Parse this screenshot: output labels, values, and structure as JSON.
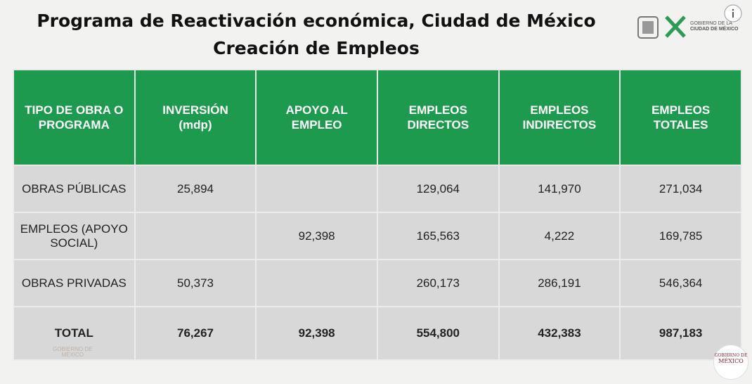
{
  "header": {
    "title": "Programa de Reactivación económica, Ciudad de México",
    "subtitle": "Creación de Empleos"
  },
  "logos": {
    "cdmx": [
      "GOBIERNO DE LA",
      "CIUDAD DE MÉXICO"
    ],
    "federal": [
      "GOBIERNO DE",
      "MÉXICO"
    ],
    "watermark": [
      "GOBIERNO DE",
      "MÉXICO"
    ]
  },
  "table": {
    "columns": [
      [
        "TIPO DE OBRA O",
        "PROGRAMA"
      ],
      [
        "INVERSIÓN",
        "(mdp)"
      ],
      [
        "APOYO AL",
        "EMPLEO"
      ],
      [
        "EMPLEOS",
        "DIRECTOS"
      ],
      [
        "EMPLEOS",
        "INDIRECTOS"
      ],
      [
        "EMPLEOS",
        "TOTALES"
      ]
    ],
    "rows": [
      [
        "OBRAS PÚBLICAS",
        "25,894",
        null,
        "129,064",
        "141,970",
        "271,034"
      ],
      [
        "EMPLEOS (APOYO SOCIAL)",
        null,
        "92,398",
        "165,563",
        "4,222",
        "169,785"
      ],
      [
        "OBRAS PRIVADAS",
        "50,373",
        null,
        "260,173",
        "286,191",
        "546,364"
      ],
      [
        "TOTAL",
        "76,267",
        "92,398",
        "554,800",
        "432,383",
        "987,183"
      ]
    ]
  }
}
